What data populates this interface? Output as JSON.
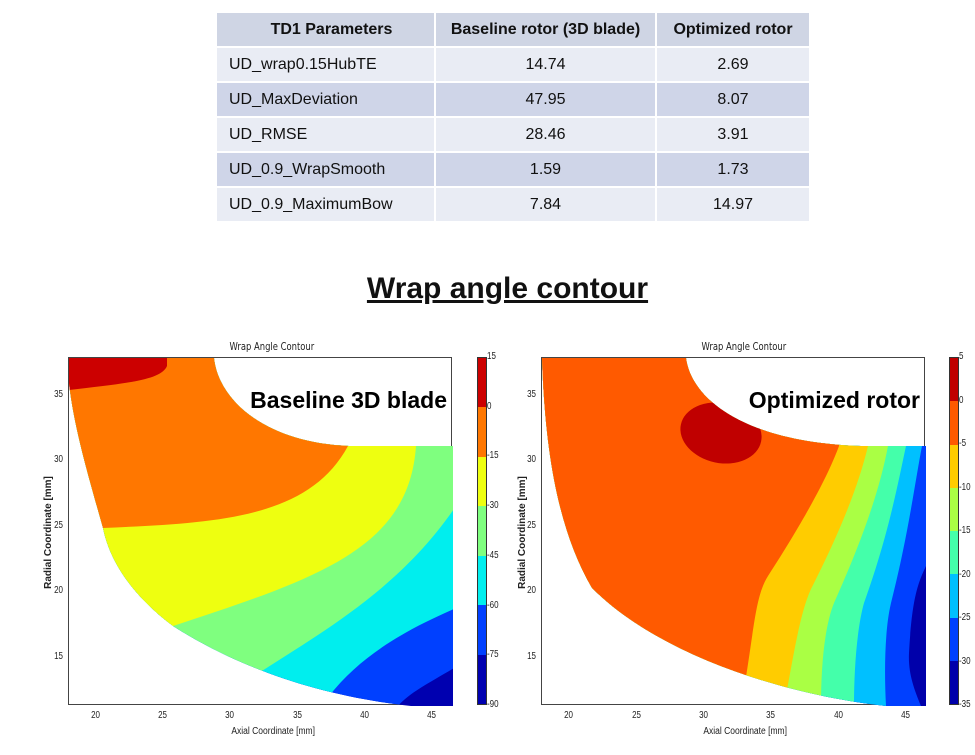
{
  "table": {
    "headers": [
      "TD1 Parameters",
      "Baseline rotor (3D blade)",
      "Optimized rotor"
    ],
    "rows": [
      [
        "UD_wrap0.15HubTE",
        "14.74",
        "2.69"
      ],
      [
        "UD_MaxDeviation",
        "47.95",
        "8.07"
      ],
      [
        "UD_RMSE",
        "28.46",
        "3.91"
      ],
      [
        "UD_0.9_WrapSmooth",
        "1.59",
        "1.73"
      ],
      [
        "UD_0.9_MaximumBow",
        "7.84",
        "14.97"
      ]
    ]
  },
  "section_title": "Wrap angle contour",
  "chart_data": [
    {
      "type": "heatmap",
      "subtype": "filled-contour",
      "title": "Wrap Angle Contour",
      "overlay_label": "Baseline 3D blade",
      "xlabel": "Axial Coordinate [mm]",
      "ylabel": "Radial Coordinate [mm]",
      "xlim": [
        17.9,
        46.5
      ],
      "ylim": [
        11.3,
        37.9
      ],
      "xticks": [
        "20",
        "25",
        "30",
        "35",
        "40",
        "45"
      ],
      "yticks": [
        "15",
        "20",
        "25",
        "30",
        "35"
      ],
      "colorbar": {
        "levels": [
          "15",
          "0",
          "-15",
          "-30",
          "-45",
          "-60",
          "-75",
          "-90"
        ],
        "colors": [
          "#cc0000",
          "#ff7700",
          "#eeff10",
          "#7fff7f",
          "#00eeee",
          "#0040ff",
          "#0000b0"
        ]
      }
    },
    {
      "type": "heatmap",
      "subtype": "filled-contour",
      "title": "Wrap Angle Contour",
      "overlay_label": "Optimized rotor",
      "xlabel": "Axial Coordinate [mm]",
      "ylabel": "Radial Coordinate [mm]",
      "xlim": [
        17.9,
        46.4
      ],
      "ylim": [
        11.3,
        37.9
      ],
      "xticks": [
        "20",
        "25",
        "30",
        "35",
        "40",
        "45"
      ],
      "yticks": [
        "15",
        "20",
        "25",
        "30",
        "35"
      ],
      "colorbar": {
        "levels": [
          "5",
          "0",
          "-5",
          "-10",
          "-15",
          "-20",
          "-25",
          "-30",
          "-35"
        ],
        "colors": [
          "#c00000",
          "#ff5a00",
          "#ffcc00",
          "#aaff44",
          "#44ffaa",
          "#00c0ff",
          "#0040ff",
          "#0000aa"
        ]
      }
    }
  ]
}
